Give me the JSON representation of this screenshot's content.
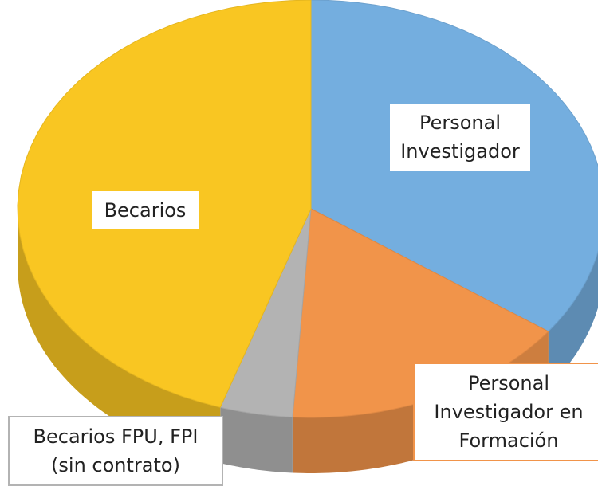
{
  "chart_data": {
    "type": "pie3d",
    "categories": [
      "Personal\nInvestigador",
      "Personal\nInvestigador en\nFormación",
      "Becarios FPU, FPI\n(sin contrato)",
      "Becarios"
    ],
    "values": [
      35,
      16,
      4,
      45
    ],
    "colors": [
      "#74aedf",
      "#f1944a",
      "#b3b3b3",
      "#f9c622"
    ]
  }
}
